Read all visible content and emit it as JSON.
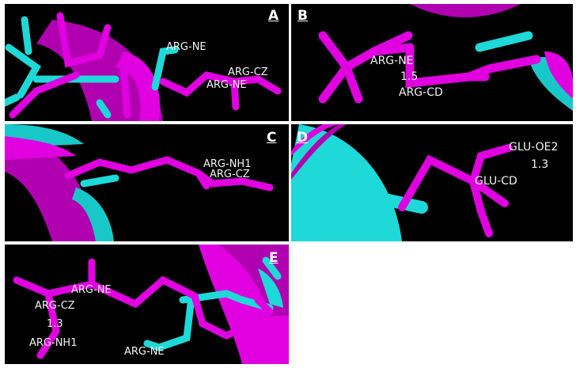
{
  "colors": {
    "magenta": "#e000e0",
    "cyan": "#1fe0e0",
    "background": "#000000"
  },
  "panels": {
    "A": {
      "label": "A",
      "atoms": [
        "ARG-NE",
        "ARG-CZ",
        "ARG-NE"
      ]
    },
    "B": {
      "label": "B",
      "atoms": [
        "ARG-NE",
        "ARG-CD"
      ],
      "distance": "1.5"
    },
    "C": {
      "label": "C",
      "atoms": [
        "ARG-NH1",
        "ARG-CZ"
      ]
    },
    "D": {
      "label": "D",
      "atoms": [
        "GLU-OE2",
        "GLU-CD"
      ],
      "distance": "1.3"
    },
    "E": {
      "label": "E",
      "atoms": [
        "ARG-NE",
        "ARG-CZ",
        "ARG-NH1",
        "ARG-NE"
      ],
      "distance": "1.3"
    }
  }
}
